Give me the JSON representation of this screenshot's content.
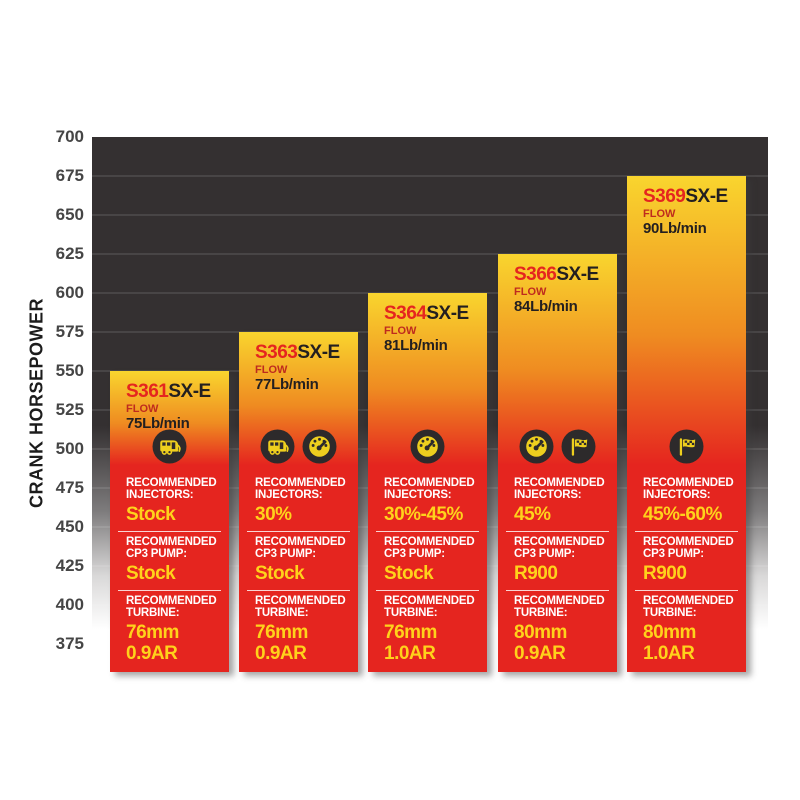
{
  "axis": {
    "label": "CRANK HORSEPOWER",
    "ticks": [
      "700",
      "675",
      "650",
      "625",
      "600",
      "575",
      "550",
      "525",
      "500",
      "475",
      "450",
      "425",
      "400",
      "375"
    ]
  },
  "chart_data": {
    "type": "bar",
    "title": "",
    "xlabel": "",
    "ylabel": "CRANK HORSEPOWER",
    "ylim": [
      375,
      700
    ],
    "grid": true,
    "categories": [
      "S361SX-E",
      "S363SX-E",
      "S364SX-E",
      "S366SX-E",
      "S369SX-E"
    ],
    "values": [
      550,
      575,
      600,
      625,
      675
    ],
    "annotations": [
      {
        "bar": "S361SX-E",
        "flow": "75Lb/min",
        "injectors": "Stock",
        "cp3_pump": "Stock",
        "turbine": "76mm 0.9AR",
        "use_icons": [
          "camper"
        ]
      },
      {
        "bar": "S363SX-E",
        "flow": "77Lb/min",
        "injectors": "30%",
        "cp3_pump": "Stock",
        "turbine": "76mm 0.9AR",
        "use_icons": [
          "camper",
          "gauge"
        ]
      },
      {
        "bar": "S364SX-E",
        "flow": "81Lb/min",
        "injectors": "30%-45%",
        "cp3_pump": "Stock",
        "turbine": "76mm 1.0AR",
        "use_icons": [
          "gauge"
        ]
      },
      {
        "bar": "S366SX-E",
        "flow": "84Lb/min",
        "injectors": "45%",
        "cp3_pump": "R900",
        "turbine": "80mm 0.9AR",
        "use_icons": [
          "gauge",
          "flag"
        ]
      },
      {
        "bar": "S369SX-E",
        "flow": "90Lb/min",
        "injectors": "45%-60%",
        "cp3_pump": "R900",
        "turbine": "80mm 1.0AR",
        "use_icons": [
          "flag"
        ]
      }
    ]
  },
  "bars": [
    {
      "model_prefix": "S361",
      "model_suffix": "SX-E",
      "flow_label": "FLOW",
      "flow_value": "75Lb/min",
      "crank_hp": 550,
      "icons": [
        "camper-icon"
      ],
      "injectors_label": "RECOMMENDED INJECTORS:",
      "injectors_value": "Stock",
      "cp3_label": "RECOMMENDED CP3 PUMP:",
      "cp3_value": "Stock",
      "turbine_label": "RECOMMENDED TURBINE:",
      "turbine_value_line1": "76mm",
      "turbine_value_line2": "0.9AR"
    },
    {
      "model_prefix": "S363",
      "model_suffix": "SX-E",
      "flow_label": "FLOW",
      "flow_value": "77Lb/min",
      "crank_hp": 575,
      "icons": [
        "camper-icon",
        "gauge-icon"
      ],
      "injectors_label": "RECOMMENDED INJECTORS:",
      "injectors_value": "30%",
      "cp3_label": "RECOMMENDED CP3 PUMP:",
      "cp3_value": "Stock",
      "turbine_label": "RECOMMENDED TURBINE:",
      "turbine_value_line1": "76mm",
      "turbine_value_line2": "0.9AR"
    },
    {
      "model_prefix": "S364",
      "model_suffix": "SX-E",
      "flow_label": "FLOW",
      "flow_value": "81Lb/min",
      "crank_hp": 600,
      "icons": [
        "gauge-icon"
      ],
      "injectors_label": "RECOMMENDED INJECTORS:",
      "injectors_value": "30%-45%",
      "cp3_label": "RECOMMENDED CP3 PUMP:",
      "cp3_value": "Stock",
      "turbine_label": "RECOMMENDED TURBINE:",
      "turbine_value_line1": "76mm",
      "turbine_value_line2": "1.0AR"
    },
    {
      "model_prefix": "S366",
      "model_suffix": "SX-E",
      "flow_label": "FLOW",
      "flow_value": "84Lb/min",
      "crank_hp": 625,
      "icons": [
        "gauge-icon",
        "flag-icon"
      ],
      "injectors_label": "RECOMMENDED INJECTORS:",
      "injectors_value": "45%",
      "cp3_label": "RECOMMENDED CP3 PUMP:",
      "cp3_value": "R900",
      "turbine_label": "RECOMMENDED TURBINE:",
      "turbine_value_line1": "80mm",
      "turbine_value_line2": "0.9AR"
    },
    {
      "model_prefix": "S369",
      "model_suffix": "SX-E",
      "flow_label": "FLOW",
      "flow_value": "90Lb/min",
      "crank_hp": 675,
      "icons": [
        "flag-icon"
      ],
      "injectors_label": "RECOMMENDED INJECTORS:",
      "injectors_value": "45%-60%",
      "cp3_label": "RECOMMENDED CP3 PUMP:",
      "cp3_value": "R900",
      "turbine_label": "RECOMMENDED TURBINE:",
      "turbine_value_line1": "80mm",
      "turbine_value_line2": "1.0AR"
    }
  ],
  "colors": {
    "plot_background_dark": "#343031",
    "bar_top_yellow": "#f9d52e",
    "bar_mid_orange": "#ef8c21",
    "bar_red": "#e5251f",
    "model_prefix_red": "#e5251f",
    "model_suffix_black": "#231f20",
    "flow_label_red": "#bf2b1e",
    "value_yellow": "#ffd21b",
    "section_label_white": "#ffffff",
    "tick_gray": "#454545",
    "icon_circle_dark": "#2d2a2b",
    "icon_glyph_yellow": "#eecf1e"
  }
}
